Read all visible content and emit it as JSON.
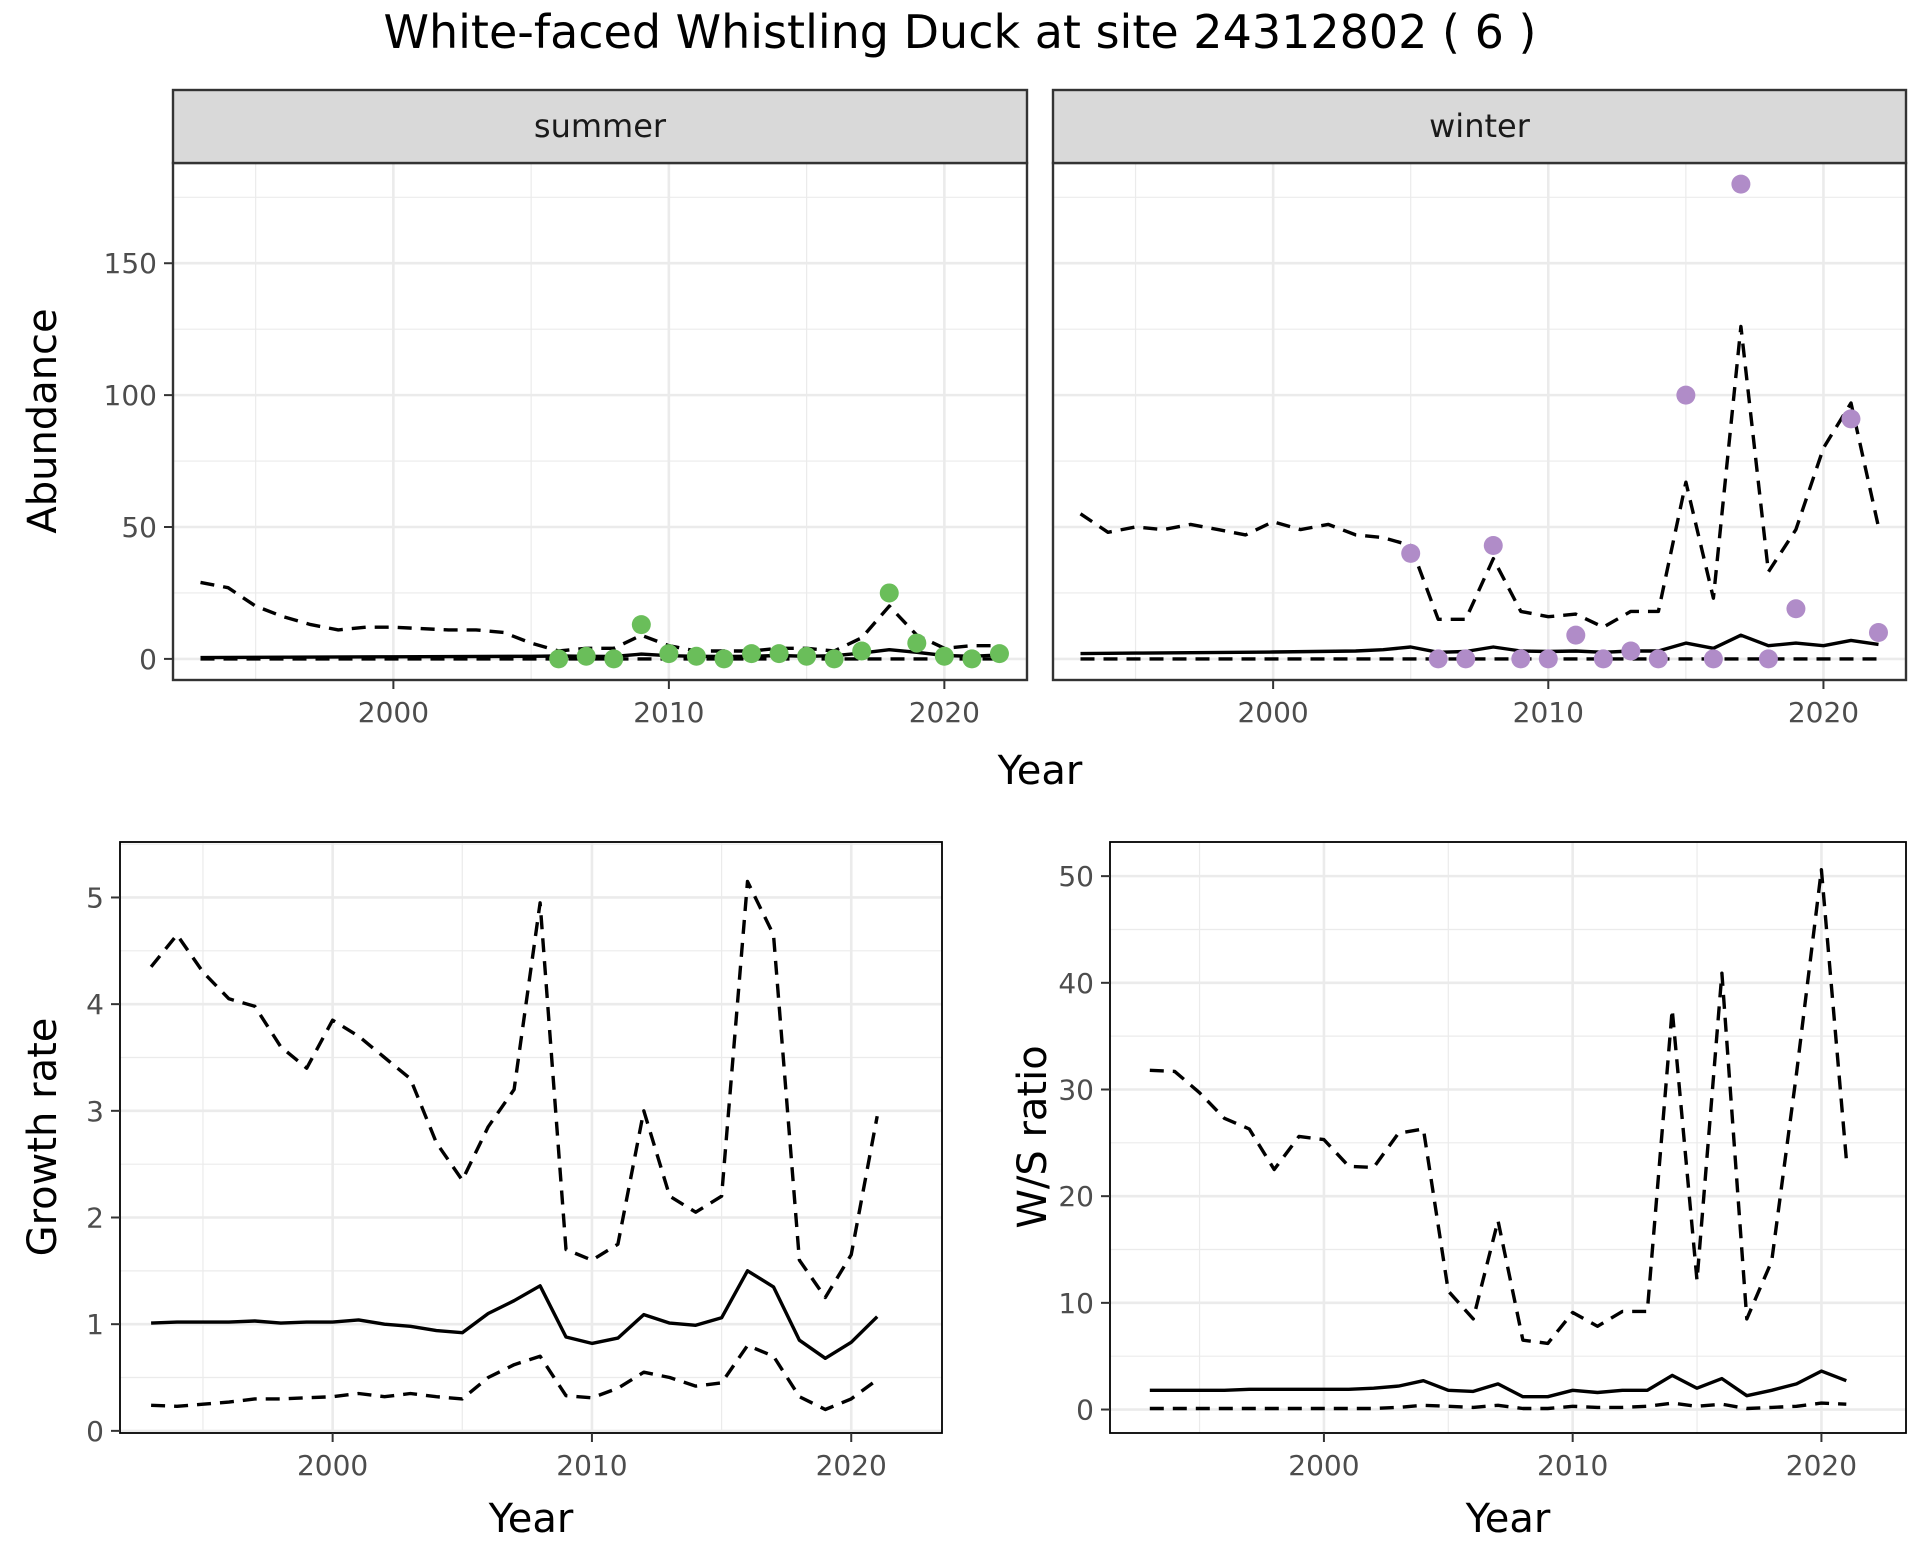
{
  "title": "White-faced Whistling Duck at site 24312802 ( 6 )",
  "colors": {
    "summer_points": "#6ABE5A",
    "winter_points": "#B08CC8",
    "grid": "#EBEBEB",
    "strip_bg": "#D9D9D9",
    "panel_border": "#333333",
    "line": "#000000"
  },
  "chart_data": [
    {
      "id": "abundance_summer",
      "type": "line",
      "facet": "summer",
      "ylabel": "Abundance",
      "xlabel": "Year",
      "xlim": [
        1992,
        2023
      ],
      "ylim": [
        -8,
        188
      ],
      "x_ticks": [
        2000,
        2010,
        2020
      ],
      "y_ticks": [
        0,
        50,
        100,
        150
      ],
      "grid": true,
      "series": [
        {
          "role": "estimate",
          "dash": "solid",
          "x": [
            1993,
            1995,
            2000,
            2005,
            2006,
            2007,
            2008,
            2009,
            2010,
            2011,
            2012,
            2013,
            2014,
            2015,
            2016,
            2017,
            2018,
            2019,
            2020,
            2021,
            2022
          ],
          "y": [
            0.5,
            0.6,
            0.8,
            1.0,
            1.1,
            1.0,
            0.9,
            1.8,
            1.2,
            1.0,
            0.9,
            1.0,
            1.3,
            1.0,
            1.2,
            2.2,
            3.5,
            2.5,
            1.3,
            1.0,
            1.5
          ]
        },
        {
          "role": "upper",
          "dash": "dashed",
          "x": [
            1993,
            1994,
            1995,
            1996,
            1997,
            1998,
            1999,
            2000,
            2001,
            2002,
            2003,
            2004,
            2005,
            2006,
            2007,
            2008,
            2009,
            2010,
            2011,
            2012,
            2013,
            2014,
            2015,
            2016,
            2017,
            2018,
            2019,
            2020,
            2021,
            2022
          ],
          "y": [
            29,
            27,
            20,
            16,
            13,
            11,
            12,
            12,
            11.5,
            11,
            11,
            10,
            6,
            3,
            4,
            4,
            9,
            5,
            3,
            3,
            3,
            4,
            4,
            3,
            8,
            20,
            9,
            4,
            5,
            5
          ]
        },
        {
          "role": "lower",
          "dash": "dashed",
          "x": [
            1993,
            2022
          ],
          "y": [
            0,
            0
          ]
        }
      ],
      "points": {
        "x": [
          2006,
          2007,
          2008,
          2009,
          2010,
          2011,
          2012,
          2013,
          2014,
          2015,
          2016,
          2017,
          2018,
          2019,
          2020,
          2021,
          2022
        ],
        "y": [
          0,
          1,
          0,
          13,
          2,
          1,
          0,
          2,
          2,
          1,
          0,
          3,
          25,
          6,
          1,
          0,
          2
        ]
      }
    },
    {
      "id": "abundance_winter",
      "type": "line",
      "facet": "winter",
      "ylabel": "Abundance",
      "xlabel": "Year",
      "xlim": [
        1992,
        2023
      ],
      "ylim": [
        -8,
        188
      ],
      "x_ticks": [
        2000,
        2010,
        2020
      ],
      "y_ticks": [
        0,
        50,
        100,
        150
      ],
      "grid": true,
      "series": [
        {
          "role": "estimate",
          "dash": "solid",
          "x": [
            1993,
            1995,
            2000,
            2003,
            2004,
            2005,
            2006,
            2007,
            2008,
            2009,
            2010,
            2011,
            2012,
            2013,
            2014,
            2015,
            2016,
            2017,
            2018,
            2019,
            2020,
            2021,
            2022
          ],
          "y": [
            2,
            2.2,
            2.6,
            3,
            3.5,
            4.5,
            2.5,
            2.8,
            4.5,
            3,
            2.8,
            3,
            2.5,
            3,
            3,
            6,
            4,
            9,
            5,
            6,
            5,
            7,
            5.5
          ]
        },
        {
          "role": "upper",
          "dash": "dashed",
          "x": [
            1993,
            1994,
            1995,
            1996,
            1997,
            1998,
            1999,
            2000,
            2001,
            2002,
            2003,
            2004,
            2005,
            2006,
            2007,
            2008,
            2009,
            2010,
            2011,
            2012,
            2013,
            2014,
            2015,
            2016,
            2017,
            2018,
            2019,
            2020,
            2021,
            2022
          ],
          "y": [
            55,
            48,
            50,
            49,
            51,
            49,
            47,
            52,
            49,
            51,
            47,
            46,
            43,
            15,
            15,
            38,
            18,
            16,
            17,
            12,
            18,
            18,
            67,
            23,
            126,
            33,
            49,
            80,
            97,
            50
          ]
        },
        {
          "role": "lower",
          "dash": "dashed",
          "x": [
            1993,
            2022
          ],
          "y": [
            0,
            0
          ]
        }
      ],
      "points": {
        "x": [
          2005,
          2006,
          2007,
          2008,
          2009,
          2010,
          2011,
          2012,
          2013,
          2014,
          2015,
          2016,
          2017,
          2018,
          2019,
          2021,
          2022
        ],
        "y": [
          40,
          0,
          0,
          43,
          0,
          0,
          9,
          0,
          3,
          0,
          100,
          0,
          180,
          0,
          19,
          91,
          10
        ]
      }
    },
    {
      "id": "growth_rate",
      "type": "line",
      "ylabel": "Growth rate",
      "xlabel": "Year",
      "xlim": [
        1991.8,
        2023.5
      ],
      "ylim": [
        -0.02,
        5.52
      ],
      "x_ticks": [
        2000,
        2010,
        2020
      ],
      "y_ticks": [
        0,
        1,
        2,
        3,
        4,
        5
      ],
      "grid": true,
      "series": [
        {
          "role": "estimate",
          "dash": "solid",
          "x": [
            1993,
            1994,
            1995,
            1996,
            1997,
            1998,
            1999,
            2000,
            2001,
            2002,
            2003,
            2004,
            2005,
            2006,
            2007,
            2008,
            2009,
            2010,
            2011,
            2012,
            2013,
            2014,
            2015,
            2016,
            2017,
            2018,
            2019,
            2020,
            2021
          ],
          "y": [
            1.01,
            1.02,
            1.02,
            1.02,
            1.03,
            1.01,
            1.02,
            1.02,
            1.04,
            1.0,
            0.98,
            0.94,
            0.92,
            1.1,
            1.22,
            1.36,
            0.88,
            0.82,
            0.87,
            1.09,
            1.01,
            0.99,
            1.06,
            1.5,
            1.35,
            0.85,
            0.68,
            0.83,
            1.07
          ]
        },
        {
          "role": "upper",
          "dash": "dashed",
          "x": [
            1993,
            1994,
            1995,
            1996,
            1997,
            1998,
            1999,
            2000,
            2001,
            2002,
            2003,
            2004,
            2005,
            2006,
            2007,
            2008,
            2009,
            2010,
            2011,
            2012,
            2013,
            2014,
            2015,
            2016,
            2017,
            2018,
            2019,
            2020,
            2021
          ],
          "y": [
            4.35,
            4.65,
            4.3,
            4.05,
            3.98,
            3.6,
            3.4,
            3.85,
            3.7,
            3.5,
            3.3,
            2.7,
            2.35,
            2.85,
            3.2,
            4.95,
            1.7,
            1.6,
            1.75,
            3.0,
            2.2,
            2.05,
            2.2,
            5.15,
            4.65,
            1.6,
            1.25,
            1.65,
            2.95
          ]
        },
        {
          "role": "lower",
          "dash": "dashed",
          "x": [
            1993,
            1994,
            1995,
            1996,
            1997,
            1998,
            1999,
            2000,
            2001,
            2002,
            2003,
            2004,
            2005,
            2006,
            2007,
            2008,
            2009,
            2010,
            2011,
            2012,
            2013,
            2014,
            2015,
            2016,
            2017,
            2018,
            2019,
            2020,
            2021
          ],
          "y": [
            0.24,
            0.23,
            0.25,
            0.27,
            0.3,
            0.3,
            0.31,
            0.32,
            0.35,
            0.32,
            0.35,
            0.32,
            0.3,
            0.5,
            0.62,
            0.7,
            0.33,
            0.31,
            0.4,
            0.55,
            0.5,
            0.42,
            0.45,
            0.8,
            0.7,
            0.32,
            0.2,
            0.3,
            0.48
          ]
        }
      ]
    },
    {
      "id": "ws_ratio",
      "type": "line",
      "ylabel": "W/S ratio",
      "xlabel": "Year",
      "xlim": [
        1991.4,
        2023.4
      ],
      "ylim": [
        -2.2,
        53.2
      ],
      "x_ticks": [
        2000,
        2010,
        2020
      ],
      "y_ticks": [
        0,
        10,
        20,
        30,
        40,
        50
      ],
      "grid": true,
      "series": [
        {
          "role": "estimate",
          "dash": "solid",
          "x": [
            1993,
            1994,
            1995,
            1996,
            1997,
            1998,
            1999,
            2000,
            2001,
            2002,
            2003,
            2004,
            2005,
            2006,
            2007,
            2008,
            2009,
            2010,
            2011,
            2012,
            2013,
            2014,
            2015,
            2016,
            2017,
            2018,
            2019,
            2020,
            2021
          ],
          "y": [
            1.8,
            1.8,
            1.8,
            1.8,
            1.9,
            1.9,
            1.9,
            1.9,
            1.9,
            2.0,
            2.2,
            2.7,
            1.8,
            1.7,
            2.4,
            1.2,
            1.2,
            1.8,
            1.6,
            1.8,
            1.8,
            3.2,
            2.0,
            2.9,
            1.3,
            1.8,
            2.4,
            3.6,
            2.7
          ]
        },
        {
          "role": "upper",
          "dash": "dashed",
          "x": [
            1993,
            1994,
            1995,
            1996,
            1997,
            1998,
            1999,
            2000,
            2001,
            2002,
            2003,
            2004,
            2005,
            2006,
            2007,
            2008,
            2009,
            2010,
            2011,
            2012,
            2013,
            2014,
            2015,
            2016,
            2017,
            2018,
            2019,
            2020,
            2021
          ],
          "y": [
            31.8,
            31.7,
            29.7,
            27.3,
            26.3,
            22.5,
            25.6,
            25.3,
            22.8,
            22.7,
            25.9,
            26.3,
            11.1,
            8.5,
            17.7,
            6.5,
            6.2,
            9.1,
            7.8,
            9.2,
            9.2,
            37.5,
            12.1,
            40.9,
            8.5,
            13.9,
            31.5,
            50.6,
            23.5
          ]
        },
        {
          "role": "lower",
          "dash": "dashed",
          "x": [
            1993,
            1994,
            1995,
            1996,
            1997,
            1998,
            1999,
            2000,
            2001,
            2002,
            2003,
            2004,
            2005,
            2006,
            2007,
            2008,
            2009,
            2010,
            2011,
            2012,
            2013,
            2014,
            2015,
            2016,
            2017,
            2018,
            2019,
            2020,
            2021
          ],
          "y": [
            0.1,
            0.1,
            0.1,
            0.1,
            0.1,
            0.1,
            0.1,
            0.1,
            0.1,
            0.1,
            0.2,
            0.4,
            0.3,
            0.2,
            0.4,
            0.1,
            0.1,
            0.3,
            0.2,
            0.2,
            0.3,
            0.6,
            0.3,
            0.5,
            0.1,
            0.2,
            0.3,
            0.6,
            0.5
          ]
        }
      ]
    }
  ]
}
